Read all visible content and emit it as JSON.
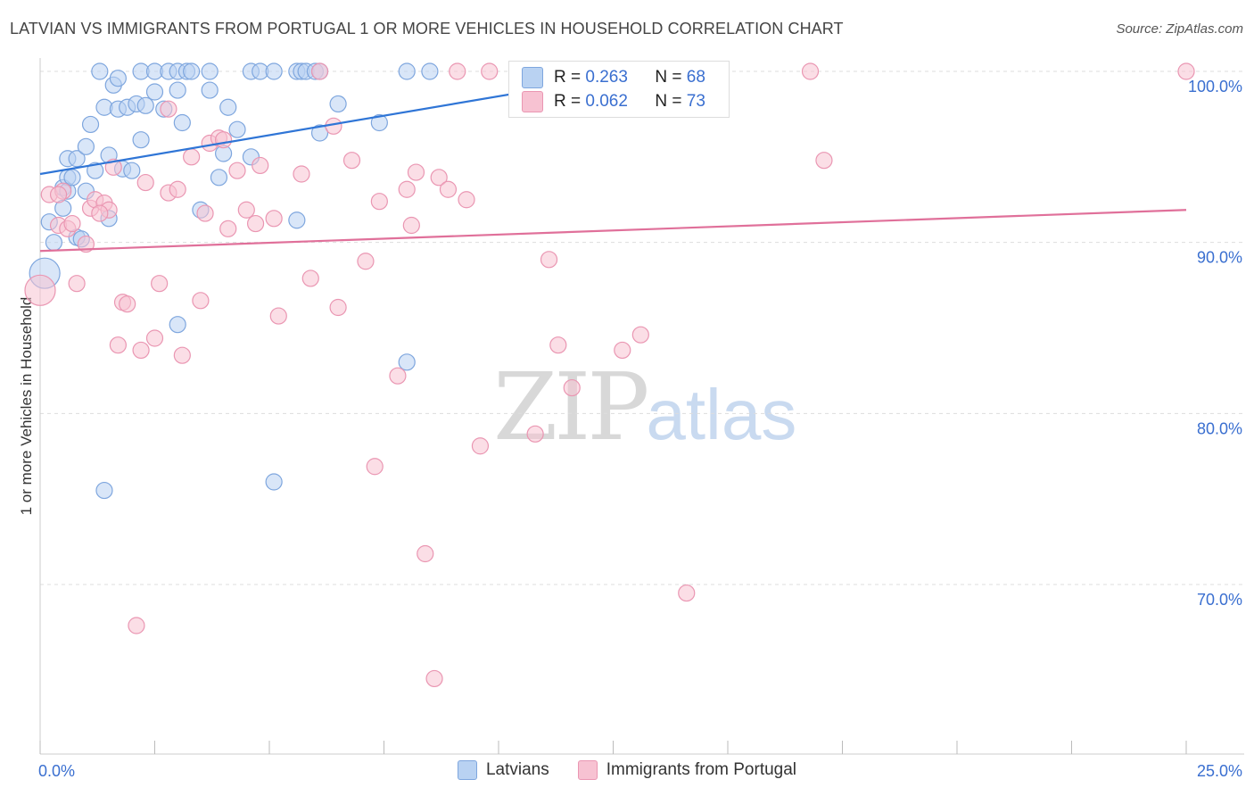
{
  "title": "LATVIAN VS IMMIGRANTS FROM PORTUGAL 1 OR MORE VEHICLES IN HOUSEHOLD CORRELATION CHART",
  "source": "Source: ZipAtlas.com",
  "watermark": {
    "zip": "ZIP",
    "atlas": "atlas"
  },
  "stats": {
    "latvians": {
      "r_label": "R = ",
      "r": "0.263",
      "n_label": "N = ",
      "n": "68"
    },
    "portugal": {
      "r_label": "R = ",
      "r": "0.062",
      "n_label": "N = ",
      "n": "73"
    }
  },
  "colors": {
    "latvians_fill": "#b9d2f2",
    "latvians_stroke": "#7ea6de",
    "latvians_line": "#2f75d6",
    "portugal_fill": "#f7c2d2",
    "portugal_stroke": "#ea96b2",
    "portugal_line": "#e0709a",
    "tick_label": "#3a6fd0",
    "grid": "#dddddd"
  },
  "chart_data": {
    "type": "scatter",
    "title": "LATVIAN VS IMMIGRANTS FROM PORTUGAL 1 OR MORE VEHICLES IN HOUSEHOLD CORRELATION CHART",
    "xlabel": "",
    "ylabel": "1 or more Vehicles in Household",
    "xlim": [
      0,
      25
    ],
    "ylim": [
      60,
      101.5
    ],
    "x_tick_labels": [
      "0.0%",
      "25.0%"
    ],
    "y_ticks": [
      70,
      80,
      90,
      100
    ],
    "y_tick_labels": [
      "70.0%",
      "80.0%",
      "90.0%",
      "100.0%"
    ],
    "grid": true,
    "legend": [
      "Latvians",
      "Immigrants from Portugal"
    ],
    "series": [
      {
        "name": "Latvians",
        "trend": {
          "x0": 0,
          "y0": 94.0,
          "x1": 13.2,
          "y1": 100.0
        },
        "points": [
          [
            0.2,
            91.2
          ],
          [
            0.3,
            90.0
          ],
          [
            0.5,
            93.2
          ],
          [
            0.5,
            92.0
          ],
          [
            0.6,
            93.8
          ],
          [
            0.6,
            94.9
          ],
          [
            0.6,
            93.0
          ],
          [
            0.7,
            93.8
          ],
          [
            0.8,
            94.9
          ],
          [
            0.8,
            90.3
          ],
          [
            0.9,
            90.2
          ],
          [
            1.0,
            93.0
          ],
          [
            1.0,
            95.6
          ],
          [
            1.1,
            96.9
          ],
          [
            1.2,
            94.2
          ],
          [
            1.3,
            100.0
          ],
          [
            1.4,
            97.9
          ],
          [
            1.5,
            95.1
          ],
          [
            1.5,
            91.4
          ],
          [
            1.6,
            99.2
          ],
          [
            1.7,
            99.6
          ],
          [
            1.7,
            97.8
          ],
          [
            1.8,
            94.3
          ],
          [
            1.9,
            97.9
          ],
          [
            2.0,
            94.2
          ],
          [
            2.1,
            98.1
          ],
          [
            2.2,
            100.0
          ],
          [
            2.2,
            96.0
          ],
          [
            2.3,
            98.0
          ],
          [
            2.5,
            100.0
          ],
          [
            2.5,
            98.8
          ],
          [
            2.7,
            97.8
          ],
          [
            2.8,
            100.0
          ],
          [
            3.0,
            100.0
          ],
          [
            3.0,
            98.9
          ],
          [
            3.1,
            97.0
          ],
          [
            3.2,
            100.0
          ],
          [
            3.3,
            100.0
          ],
          [
            3.5,
            91.9
          ],
          [
            3.7,
            100.0
          ],
          [
            3.7,
            98.9
          ],
          [
            3.9,
            93.8
          ],
          [
            4.0,
            95.2
          ],
          [
            4.1,
            97.9
          ],
          [
            4.3,
            96.6
          ],
          [
            4.6,
            95.0
          ],
          [
            4.6,
            100.0
          ],
          [
            4.8,
            100.0
          ],
          [
            5.1,
            100.0
          ],
          [
            5.1,
            76.0
          ],
          [
            5.6,
            100.0
          ],
          [
            5.6,
            91.3
          ],
          [
            5.7,
            100.0
          ],
          [
            5.8,
            100.0
          ],
          [
            6.0,
            100.0
          ],
          [
            6.1,
            96.4
          ],
          [
            6.5,
            98.1
          ],
          [
            7.4,
            97.0
          ],
          [
            8.0,
            83.0
          ],
          [
            8.0,
            100.0
          ],
          [
            8.5,
            100.0
          ],
          [
            10.4,
            100.0
          ],
          [
            13.1,
            100.0
          ],
          [
            13.2,
            100.0
          ],
          [
            1.4,
            75.5
          ],
          [
            3.0,
            85.2
          ],
          [
            0.1,
            88.2
          ],
          [
            6.1,
            100.0
          ]
        ]
      },
      {
        "name": "Immigrants from Portugal",
        "trend": {
          "x0": 0,
          "y0": 89.5,
          "x1": 25,
          "y1": 91.9
        },
        "points": [
          [
            0.0,
            87.2
          ],
          [
            0.2,
            92.8
          ],
          [
            0.4,
            91.0
          ],
          [
            0.5,
            93.0
          ],
          [
            0.6,
            90.8
          ],
          [
            0.7,
            91.1
          ],
          [
            0.8,
            87.6
          ],
          [
            1.0,
            89.9
          ],
          [
            1.1,
            92.0
          ],
          [
            1.2,
            92.5
          ],
          [
            1.4,
            92.3
          ],
          [
            1.5,
            91.9
          ],
          [
            1.6,
            94.4
          ],
          [
            1.7,
            84.0
          ],
          [
            1.8,
            86.5
          ],
          [
            1.9,
            86.4
          ],
          [
            2.1,
            67.6
          ],
          [
            2.2,
            83.7
          ],
          [
            2.3,
            93.5
          ],
          [
            2.5,
            84.4
          ],
          [
            2.6,
            87.6
          ],
          [
            2.8,
            97.8
          ],
          [
            2.8,
            92.9
          ],
          [
            3.0,
            93.1
          ],
          [
            3.1,
            83.4
          ],
          [
            3.3,
            95.0
          ],
          [
            3.5,
            86.6
          ],
          [
            3.6,
            91.7
          ],
          [
            3.7,
            95.8
          ],
          [
            3.9,
            96.1
          ],
          [
            4.0,
            96.0
          ],
          [
            4.1,
            90.8
          ],
          [
            4.3,
            94.2
          ],
          [
            4.5,
            91.9
          ],
          [
            4.7,
            91.1
          ],
          [
            4.8,
            94.5
          ],
          [
            5.1,
            91.4
          ],
          [
            5.2,
            85.7
          ],
          [
            5.7,
            94.0
          ],
          [
            5.9,
            87.9
          ],
          [
            6.1,
            100.0
          ],
          [
            6.4,
            96.8
          ],
          [
            6.5,
            86.2
          ],
          [
            6.8,
            94.8
          ],
          [
            7.1,
            88.9
          ],
          [
            7.3,
            76.9
          ],
          [
            7.4,
            92.4
          ],
          [
            7.8,
            82.2
          ],
          [
            8.0,
            93.1
          ],
          [
            8.1,
            91.0
          ],
          [
            8.4,
            71.8
          ],
          [
            8.6,
            64.5
          ],
          [
            8.7,
            93.8
          ],
          [
            8.9,
            93.1
          ],
          [
            9.1,
            100.0
          ],
          [
            9.3,
            92.5
          ],
          [
            9.6,
            78.1
          ],
          [
            9.8,
            100.0
          ],
          [
            10.4,
            100.0
          ],
          [
            10.8,
            78.8
          ],
          [
            11.1,
            89.0
          ],
          [
            11.3,
            84.0
          ],
          [
            11.6,
            81.5
          ],
          [
            12.7,
            83.7
          ],
          [
            13.1,
            84.6
          ],
          [
            13.6,
            100.0
          ],
          [
            14.1,
            69.5
          ],
          [
            16.8,
            100.0
          ],
          [
            17.1,
            94.8
          ],
          [
            25.0,
            100.0
          ],
          [
            1.3,
            91.7
          ],
          [
            0.4,
            92.8
          ],
          [
            8.2,
            94.1
          ]
        ]
      }
    ]
  }
}
